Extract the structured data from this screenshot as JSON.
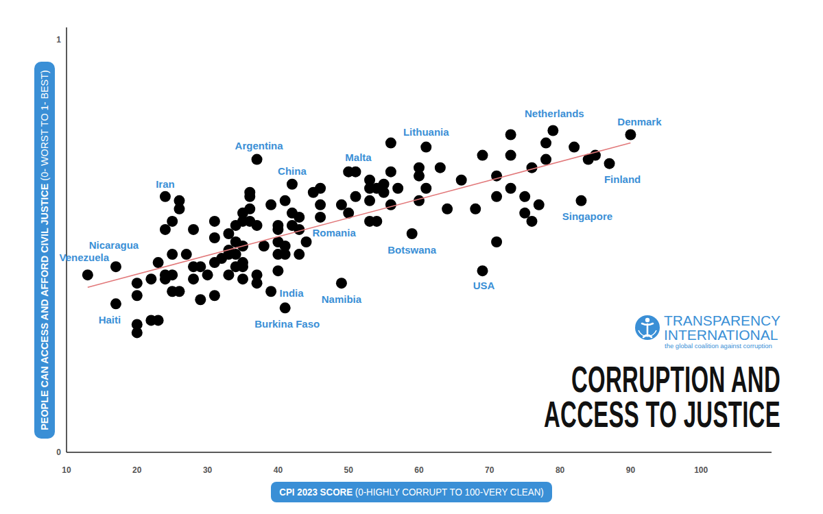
{
  "chart_data": {
    "type": "scatter",
    "title": "CORRUPTION AND ACCESS TO JUSTICE",
    "x_label": "CPI 2023 SCORE (0-HIGHLY CORRUPT TO 100-VERY CLEAN)",
    "y_label": "PEOPLE CAN ACCESS AND AFFORD CIVIL JUSTICE (0- WORST TO 1- BEST)",
    "xlim": [
      10,
      110
    ],
    "ylim": [
      0,
      1.03
    ],
    "xticks": [
      10,
      20,
      30,
      40,
      50,
      60,
      70,
      80,
      90,
      100
    ],
    "yticks": [
      0,
      1
    ],
    "grid": false,
    "series": [
      {
        "type": "scatter",
        "color": "#000000",
        "marker": "circle",
        "x": [
          13,
          17,
          17,
          20,
          20,
          20,
          20,
          22,
          22,
          23,
          23,
          24,
          24,
          24,
          24,
          25,
          25,
          25,
          25,
          26,
          26,
          26,
          27,
          28,
          28,
          28,
          29,
          29,
          30,
          31,
          31,
          31,
          31,
          32,
          33,
          33,
          33,
          33,
          34,
          34,
          34,
          34,
          35,
          35,
          35,
          35,
          35,
          35,
          36,
          36,
          36,
          36,
          37,
          37,
          37,
          37,
          38,
          39,
          39,
          40,
          40,
          40,
          40,
          40,
          41,
          41,
          41,
          41,
          42,
          42,
          42,
          43,
          43,
          43,
          44,
          45,
          46,
          46,
          46,
          49,
          49,
          50,
          50,
          51,
          51,
          53,
          53,
          53,
          53,
          54,
          54,
          55,
          55,
          56,
          56,
          56,
          57,
          59,
          60,
          60,
          60,
          61,
          61,
          63,
          64,
          66,
          68,
          69,
          69,
          71,
          71,
          71,
          73,
          73,
          73,
          75,
          75,
          76,
          76,
          77,
          78,
          78,
          79,
          82,
          83,
          84,
          85,
          87,
          90
        ],
        "values": [
          0.43,
          0.45,
          0.36,
          0.41,
          0.38,
          0.31,
          0.29,
          0.42,
          0.32,
          0.32,
          0.46,
          0.62,
          0.54,
          0.43,
          0.42,
          0.56,
          0.48,
          0.43,
          0.39,
          0.61,
          0.59,
          0.39,
          0.48,
          0.54,
          0.45,
          0.42,
          0.45,
          0.37,
          0.43,
          0.56,
          0.52,
          0.46,
          0.38,
          0.47,
          0.53,
          0.49,
          0.48,
          0.43,
          0.55,
          0.51,
          0.48,
          0.45,
          0.58,
          0.56,
          0.5,
          0.46,
          0.45,
          0.42,
          0.63,
          0.62,
          0.59,
          0.56,
          0.71,
          0.55,
          0.43,
          0.41,
          0.5,
          0.6,
          0.39,
          0.55,
          0.54,
          0.51,
          0.48,
          0.44,
          0.61,
          0.5,
          0.48,
          0.35,
          0.65,
          0.58,
          0.55,
          0.57,
          0.54,
          0.48,
          0.51,
          0.63,
          0.64,
          0.6,
          0.57,
          0.6,
          0.41,
          0.68,
          0.58,
          0.68,
          0.62,
          0.66,
          0.64,
          0.61,
          0.56,
          0.64,
          0.56,
          0.65,
          0.63,
          0.75,
          0.68,
          0.6,
          0.64,
          0.53,
          0.69,
          0.67,
          0.61,
          0.74,
          0.64,
          0.69,
          0.59,
          0.66,
          0.59,
          0.72,
          0.44,
          0.67,
          0.62,
          0.51,
          0.77,
          0.72,
          0.64,
          0.62,
          0.58,
          0.69,
          0.56,
          0.6,
          0.75,
          0.71,
          0.78,
          0.74,
          0.61,
          0.71,
          0.72,
          0.7,
          0.77
        ]
      },
      {
        "type": "line",
        "color": "#e2787a",
        "line_style": "solid",
        "x": [
          13,
          90
        ],
        "values": [
          0.4,
          0.75
        ]
      }
    ],
    "annotations": [
      {
        "text": "Venezuela",
        "x": 13,
        "y": 0.43
      },
      {
        "text": "Nicaragua",
        "x": 17,
        "y": 0.45
      },
      {
        "text": "Haiti",
        "x": 17,
        "y": 0.36
      },
      {
        "text": "Iran",
        "x": 24,
        "y": 0.62
      },
      {
        "text": "Argentina",
        "x": 37,
        "y": 0.71
      },
      {
        "text": "China",
        "x": 42,
        "y": 0.65
      },
      {
        "text": "Malta",
        "x": 51,
        "y": 0.68
      },
      {
        "text": "Lithuania",
        "x": 61,
        "y": 0.74
      },
      {
        "text": "Romania",
        "x": 46,
        "y": 0.57
      },
      {
        "text": "Botswana",
        "x": 59,
        "y": 0.53
      },
      {
        "text": "Namibia",
        "x": 49,
        "y": 0.41
      },
      {
        "text": "India",
        "x": 39,
        "y": 0.39
      },
      {
        "text": "Burkina Faso",
        "x": 41,
        "y": 0.35
      },
      {
        "text": "USA",
        "x": 69,
        "y": 0.44
      },
      {
        "text": "Singapore",
        "x": 83,
        "y": 0.61
      },
      {
        "text": "Finland",
        "x": 87,
        "y": 0.7
      },
      {
        "text": "Denmark",
        "x": 90,
        "y": 0.77
      },
      {
        "text": "Netherlands",
        "x": 79,
        "y": 0.78
      }
    ],
    "source": {
      "name": "TRANSPARENCY INTERNATIONAL",
      "tagline": "the global coalition against corruption"
    }
  }
}
